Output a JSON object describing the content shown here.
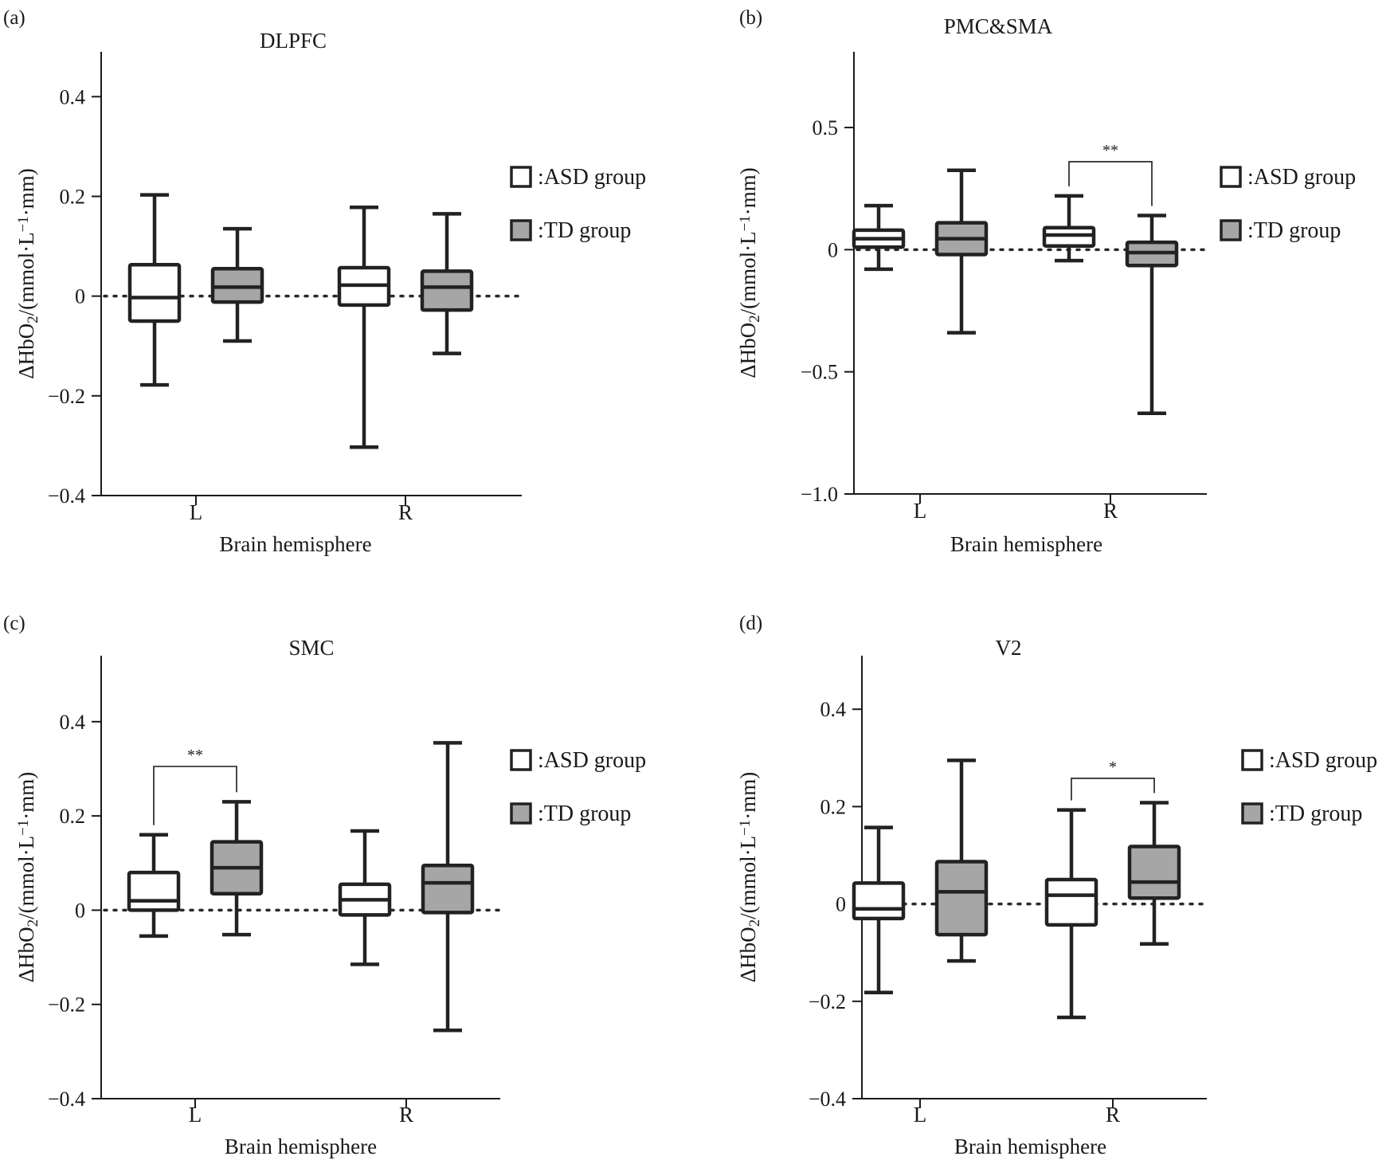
{
  "legend": {
    "asd": ":ASD group",
    "td": ":TD group"
  },
  "colors": {
    "asd_fill": "#ffffff",
    "td_fill": "#a6a6a6",
    "stroke": "#222222"
  },
  "chart_data": [
    {
      "type": "box",
      "panel_label": "(a)",
      "title": "DLPFC",
      "xlabel": "Brain hemisphere",
      "ylabel": "ΔHbO2/(mmol·L−1·mm)",
      "categories": [
        "L",
        "R"
      ],
      "ylim": [
        -0.4,
        0.49
      ],
      "yticks": [
        -0.4,
        -0.2,
        0,
        0.2,
        0.4
      ],
      "ytick_labels": [
        "−0.4",
        "−0.2",
        "0",
        "0.2",
        "0.4"
      ],
      "series": [
        {
          "name": "ASD group",
          "boxes": [
            {
              "min": -0.178,
              "q1": -0.05,
              "median": -0.003,
              "q3": 0.063,
              "max": 0.203
            },
            {
              "min": -0.303,
              "q1": -0.018,
              "median": 0.022,
              "q3": 0.057,
              "max": 0.178
            }
          ]
        },
        {
          "name": "TD group",
          "boxes": [
            {
              "min": -0.09,
              "q1": -0.012,
              "median": 0.018,
              "q3": 0.055,
              "max": 0.135
            },
            {
              "min": -0.115,
              "q1": -0.028,
              "median": 0.018,
              "q3": 0.05,
              "max": 0.165
            }
          ]
        }
      ],
      "annotations": []
    },
    {
      "type": "box",
      "panel_label": "(b)",
      "title": "PMC&SMA",
      "xlabel": "Brain hemisphere",
      "ylabel": "ΔHbO2/(mmol·L−1·mm)",
      "categories": [
        "L",
        "R"
      ],
      "ylim": [
        -1.0,
        0.81
      ],
      "yticks": [
        -1.0,
        -0.5,
        0,
        0.5
      ],
      "ytick_labels": [
        "−1.0",
        "−0.5",
        "0",
        "0.5"
      ],
      "series": [
        {
          "name": "ASD group",
          "boxes": [
            {
              "min": -0.08,
              "q1": 0.01,
              "median": 0.045,
              "q3": 0.08,
              "max": 0.18
            },
            {
              "min": -0.045,
              "q1": 0.015,
              "median": 0.06,
              "q3": 0.09,
              "max": 0.22
            }
          ]
        },
        {
          "name": "TD group",
          "boxes": [
            {
              "min": -0.34,
              "q1": -0.02,
              "median": 0.045,
              "q3": 0.11,
              "max": 0.325
            },
            {
              "min": -0.67,
              "q1": -0.065,
              "median": -0.012,
              "q3": 0.03,
              "max": 0.14
            }
          ]
        }
      ],
      "annotations": [
        {
          "category": "R",
          "text": "**",
          "y": 0.36
        }
      ]
    },
    {
      "type": "box",
      "panel_label": "(c)",
      "title": "SMC",
      "xlabel": "Brain hemisphere",
      "ylabel": "ΔHbO2/(mmol·L−1·mm)",
      "categories": [
        "L",
        "R"
      ],
      "ylim": [
        -0.4,
        0.54
      ],
      "yticks": [
        -0.4,
        -0.2,
        0,
        0.2,
        0.4
      ],
      "ytick_labels": [
        "−0.4",
        "−0.2",
        "0",
        "0.2",
        "0.4"
      ],
      "series": [
        {
          "name": "ASD group",
          "boxes": [
            {
              "min": -0.055,
              "q1": 0.0,
              "median": 0.02,
              "q3": 0.08,
              "max": 0.16
            },
            {
              "min": -0.115,
              "q1": -0.01,
              "median": 0.022,
              "q3": 0.055,
              "max": 0.168
            }
          ]
        },
        {
          "name": "TD group",
          "boxes": [
            {
              "min": -0.052,
              "q1": 0.035,
              "median": 0.09,
              "q3": 0.145,
              "max": 0.23
            },
            {
              "min": -0.255,
              "q1": -0.005,
              "median": 0.058,
              "q3": 0.095,
              "max": 0.355
            }
          ]
        }
      ],
      "annotations": [
        {
          "category": "L",
          "text": "**",
          "y": 0.305
        }
      ]
    },
    {
      "type": "box",
      "panel_label": "(d)",
      "title": "V2",
      "xlabel": "Brain hemisphere",
      "ylabel": "ΔHbO2/(mmol·L−1·mm)",
      "categories": [
        "L",
        "R"
      ],
      "ylim": [
        -0.4,
        0.51
      ],
      "yticks": [
        -0.4,
        -0.2,
        0,
        0.2,
        0.4
      ],
      "ytick_labels": [
        "−0.4",
        "−0.2",
        "0",
        "0.2",
        "0.4"
      ],
      "series": [
        {
          "name": "ASD group",
          "boxes": [
            {
              "min": -0.182,
              "q1": -0.03,
              "median": -0.01,
              "q3": 0.043,
              "max": 0.157
            },
            {
              "min": -0.233,
              "q1": -0.043,
              "median": 0.018,
              "q3": 0.05,
              "max": 0.193
            }
          ]
        },
        {
          "name": "TD group",
          "boxes": [
            {
              "min": -0.117,
              "q1": -0.063,
              "median": 0.025,
              "q3": 0.087,
              "max": 0.295
            },
            {
              "min": -0.082,
              "q1": 0.012,
              "median": 0.045,
              "q3": 0.118,
              "max": 0.208
            }
          ]
        }
      ],
      "annotations": [
        {
          "category": "R",
          "text": "*",
          "y": 0.258
        }
      ]
    }
  ]
}
